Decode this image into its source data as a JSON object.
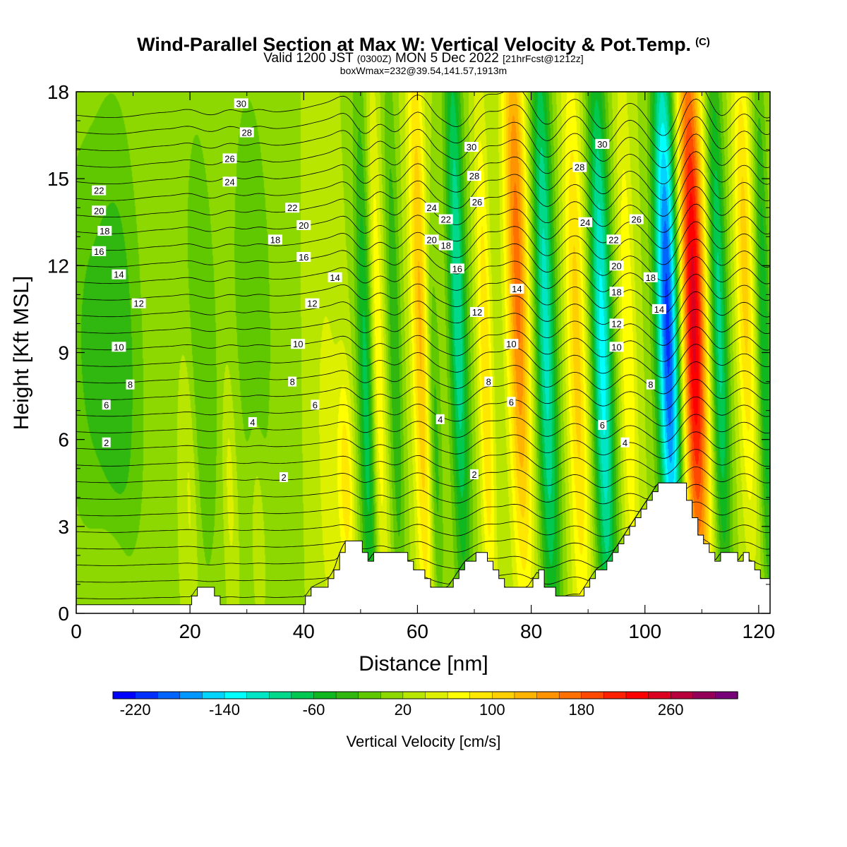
{
  "header": {
    "title": "Wind-Parallel Section at Max W: Vertical Velocity & Pot.Temp.",
    "title_mark": "(C)",
    "valid_prefix": "Valid 1200 JST",
    "valid_utc": "(0300Z)",
    "valid_date": "MON 5 Dec 2022",
    "forecast": "[21hrFcst@1212z]",
    "box_info": "boxWmax=232@39.54,141.57,1913m"
  },
  "chart_data": {
    "type": "heatmap",
    "xlabel": "Distance [nm]",
    "ylabel": "Height [Kft MSL]",
    "xlim": [
      0,
      122
    ],
    "ylim": [
      0,
      18
    ],
    "x_ticks": [
      0,
      20,
      40,
      60,
      80,
      100,
      120
    ],
    "x_tick_labels": [
      "0",
      "20",
      "40",
      "60",
      "80",
      "100",
      "120"
    ],
    "y_ticks": [
      0,
      3,
      6,
      9,
      12,
      15,
      18
    ],
    "y_tick_labels": [
      "0",
      "3",
      "6",
      "9",
      "12",
      "15",
      "18"
    ],
    "colorbar": {
      "label": "Vertical Velocity [cm/s]",
      "min": -240,
      "max": 300,
      "step": 20,
      "tick_values": [
        -220,
        -140,
        -60,
        20,
        100,
        180,
        260
      ],
      "tick_labels": [
        "-220",
        "-140",
        "-60",
        "20",
        "100",
        "180",
        "260"
      ],
      "colors": [
        "#0000ff",
        "#0030ff",
        "#0064ff",
        "#0098ff",
        "#00d4ff",
        "#00ffff",
        "#00e6c4",
        "#00d88c",
        "#00c850",
        "#10b820",
        "#30b810",
        "#60c800",
        "#8cd800",
        "#b8e600",
        "#dcf000",
        "#ffff00",
        "#ffe800",
        "#ffd000",
        "#ffb400",
        "#ff9400",
        "#ff7000",
        "#ff4800",
        "#ff2000",
        "#ff0000",
        "#dc0020",
        "#b8003c",
        "#940058",
        "#780078",
        "#5a0096"
      ]
    },
    "w_cells": [
      {
        "x": 2,
        "y": 9,
        "sx": 5,
        "sy": 8,
        "v": -40
      },
      {
        "x": 8,
        "y": 9,
        "sx": 4,
        "sy": 9,
        "v": -45
      },
      {
        "x": 22,
        "y": 9,
        "sx": 3,
        "sy": 9,
        "v": -40
      },
      {
        "x": 31,
        "y": 11,
        "sx": 4,
        "sy": 9,
        "v": -35
      },
      {
        "x": 6,
        "y": 2,
        "sx": 4,
        "sy": 1.5,
        "v": 15
      },
      {
        "x": 20,
        "y": 4.5,
        "sx": 1.4,
        "sy": 5,
        "v": 35
      },
      {
        "x": 27,
        "y": 4.5,
        "sx": 1.2,
        "sy": 4,
        "v": 35
      },
      {
        "x": 32,
        "y": 3,
        "sx": 1.2,
        "sy": 3,
        "v": 30
      },
      {
        "x": 44.5,
        "y": 5,
        "sx": 2.2,
        "sy": 7,
        "v": 35
      },
      {
        "x": 47.5,
        "y": 4.5,
        "sx": 1.3,
        "sy": 4,
        "v": 70
      },
      {
        "x": 51,
        "y": 7,
        "sx": 1.4,
        "sy": 11,
        "v": -90
      },
      {
        "x": 53,
        "y": 9,
        "sx": 1.2,
        "sy": 10,
        "v": 60
      },
      {
        "x": 56,
        "y": 9,
        "sx": 1.2,
        "sy": 10,
        "v": -60
      },
      {
        "x": 60.5,
        "y": 10,
        "sx": 1.6,
        "sy": 12,
        "v": 105
      },
      {
        "x": 63,
        "y": 6,
        "sx": 1.2,
        "sy": 7,
        "v": -60
      },
      {
        "x": 67,
        "y": 11,
        "sx": 1.6,
        "sy": 11,
        "v": -120
      },
      {
        "x": 72,
        "y": 8,
        "sx": 1.3,
        "sy": 10,
        "v": 80
      },
      {
        "x": 77.5,
        "y": 12,
        "sx": 2.0,
        "sy": 11,
        "v": 150
      },
      {
        "x": 82.5,
        "y": 10,
        "sx": 1.8,
        "sy": 12,
        "v": -130
      },
      {
        "x": 88,
        "y": 9,
        "sx": 1.8,
        "sy": 11,
        "v": 90
      },
      {
        "x": 92.5,
        "y": 9,
        "sx": 1.8,
        "sy": 11,
        "v": -150
      },
      {
        "x": 97,
        "y": 9,
        "sx": 1.5,
        "sy": 10,
        "v": 60
      },
      {
        "x": 104,
        "y": 10,
        "sx": 2.0,
        "sy": 10,
        "v": -230
      },
      {
        "x": 108.5,
        "y": 10.5,
        "sx": 2.2,
        "sy": 11,
        "v": 230
      },
      {
        "x": 113,
        "y": 10,
        "sx": 1.5,
        "sy": 10,
        "v": -110
      },
      {
        "x": 117.5,
        "y": 12,
        "sx": 1.6,
        "sy": 9,
        "v": 90
      },
      {
        "x": 121,
        "y": 9,
        "sx": 1.2,
        "sy": 10,
        "v": -80
      }
    ],
    "terrain": {
      "x": [
        0,
        19.3,
        20.3,
        21.3,
        23.3,
        24.3,
        25.3,
        39.3,
        40.3,
        41.3,
        44.3,
        45.3,
        46.3,
        47.3,
        49.3,
        50.3,
        51.3,
        52.3,
        57.3,
        58.3,
        59.3,
        61.3,
        62.3,
        63.3,
        65.3,
        66.3,
        67.3,
        68.3,
        70.3,
        71.3,
        72.3,
        73.3,
        74.3,
        75.3,
        79.3,
        80.3,
        81.3,
        82.3,
        84.3,
        85.3,
        88.3,
        89.3,
        90.3,
        91.3,
        93.3,
        94.3,
        95.3,
        96.3,
        97.3,
        98.3,
        99.3,
        100.3,
        101.3,
        102.3,
        103.3,
        106.3,
        107.3,
        108.3,
        109.3,
        110.3,
        111.3,
        112.3,
        113.3,
        115.3,
        116.3,
        117.3,
        118.3,
        119.3,
        120.3,
        121.3,
        122
      ],
      "h": [
        0.3,
        0.3,
        0.6,
        0.9,
        0.9,
        0.6,
        0.3,
        0.3,
        0.6,
        0.9,
        1.2,
        1.5,
        2.1,
        2.5,
        2.5,
        2.1,
        1.8,
        2.1,
        2.1,
        1.8,
        1.5,
        1.2,
        0.9,
        0.9,
        0.9,
        1.2,
        1.5,
        1.8,
        2.1,
        2.1,
        1.8,
        1.5,
        1.2,
        0.9,
        0.9,
        1.2,
        1.5,
        0.9,
        0.6,
        0.6,
        0.6,
        0.9,
        1.2,
        1.5,
        1.8,
        2.1,
        2.4,
        2.7,
        3.0,
        3.3,
        3.6,
        3.9,
        4.2,
        4.5,
        4.5,
        4.5,
        3.9,
        3.3,
        2.7,
        2.4,
        2.1,
        1.8,
        2.1,
        2.1,
        1.8,
        2.1,
        1.8,
        1.5,
        1.2,
        1.2,
        1.2
      ]
    },
    "theta_levels": [
      2,
      4,
      6,
      8,
      10,
      12,
      14,
      16,
      18,
      20,
      22,
      24,
      26,
      28,
      30
    ],
    "theta_labels": [
      {
        "text": "30",
        "x": 29,
        "y": 17.6
      },
      {
        "text": "28",
        "x": 30,
        "y": 16.6
      },
      {
        "text": "26",
        "x": 27,
        "y": 15.7
      },
      {
        "text": "24",
        "x": 27,
        "y": 14.9
      },
      {
        "text": "22",
        "x": 4,
        "y": 14.6
      },
      {
        "text": "20",
        "x": 4,
        "y": 13.9
      },
      {
        "text": "18",
        "x": 5,
        "y": 13.2
      },
      {
        "text": "16",
        "x": 4,
        "y": 12.5
      },
      {
        "text": "14",
        "x": 7.5,
        "y": 11.7
      },
      {
        "text": "12",
        "x": 11,
        "y": 10.7
      },
      {
        "text": "10",
        "x": 7.5,
        "y": 9.2
      },
      {
        "text": "8",
        "x": 9.5,
        "y": 7.9
      },
      {
        "text": "6",
        "x": 5.3,
        "y": 7.2
      },
      {
        "text": "2",
        "x": 5.3,
        "y": 5.9
      },
      {
        "text": "22",
        "x": 38,
        "y": 14.0
      },
      {
        "text": "20",
        "x": 40,
        "y": 13.4
      },
      {
        "text": "18",
        "x": 35,
        "y": 12.9
      },
      {
        "text": "16",
        "x": 40,
        "y": 12.3
      },
      {
        "text": "14",
        "x": 45.5,
        "y": 11.6
      },
      {
        "text": "12",
        "x": 41.5,
        "y": 10.7
      },
      {
        "text": "10",
        "x": 39,
        "y": 9.3
      },
      {
        "text": "8",
        "x": 38,
        "y": 8.0
      },
      {
        "text": "6",
        "x": 42,
        "y": 7.2
      },
      {
        "text": "4",
        "x": 31,
        "y": 6.6
      },
      {
        "text": "2",
        "x": 36.5,
        "y": 4.7
      },
      {
        "text": "30",
        "x": 69.5,
        "y": 16.1
      },
      {
        "text": "28",
        "x": 70,
        "y": 15.1
      },
      {
        "text": "26",
        "x": 70.5,
        "y": 14.2
      },
      {
        "text": "24",
        "x": 62.5,
        "y": 14.0
      },
      {
        "text": "22",
        "x": 65,
        "y": 13.6
      },
      {
        "text": "20",
        "x": 62.5,
        "y": 12.9
      },
      {
        "text": "18",
        "x": 65,
        "y": 12.7
      },
      {
        "text": "16",
        "x": 67,
        "y": 11.9
      },
      {
        "text": "14",
        "x": 77.5,
        "y": 11.2
      },
      {
        "text": "12",
        "x": 70.5,
        "y": 10.4
      },
      {
        "text": "10",
        "x": 76.5,
        "y": 9.3
      },
      {
        "text": "8",
        "x": 72.5,
        "y": 8.0
      },
      {
        "text": "6",
        "x": 76.5,
        "y": 7.3
      },
      {
        "text": "4",
        "x": 64,
        "y": 6.7
      },
      {
        "text": "2",
        "x": 70,
        "y": 4.8
      },
      {
        "text": "30",
        "x": 92.5,
        "y": 16.2
      },
      {
        "text": "28",
        "x": 88.5,
        "y": 15.4
      },
      {
        "text": "26",
        "x": 98.5,
        "y": 13.6
      },
      {
        "text": "24",
        "x": 89.5,
        "y": 13.5
      },
      {
        "text": "22",
        "x": 94.5,
        "y": 12.9
      },
      {
        "text": "20",
        "x": 95,
        "y": 12.0
      },
      {
        "text": "18",
        "x": 101,
        "y": 11.6
      },
      {
        "text": "18",
        "x": 95,
        "y": 11.1
      },
      {
        "text": "14",
        "x": 102.5,
        "y": 10.5
      },
      {
        "text": "12",
        "x": 95,
        "y": 10.0
      },
      {
        "text": "10",
        "x": 95,
        "y": 9.2
      },
      {
        "text": "8",
        "x": 101,
        "y": 7.9
      },
      {
        "text": "6",
        "x": 92.5,
        "y": 6.5
      },
      {
        "text": "4",
        "x": 96.5,
        "y": 5.9
      }
    ]
  }
}
